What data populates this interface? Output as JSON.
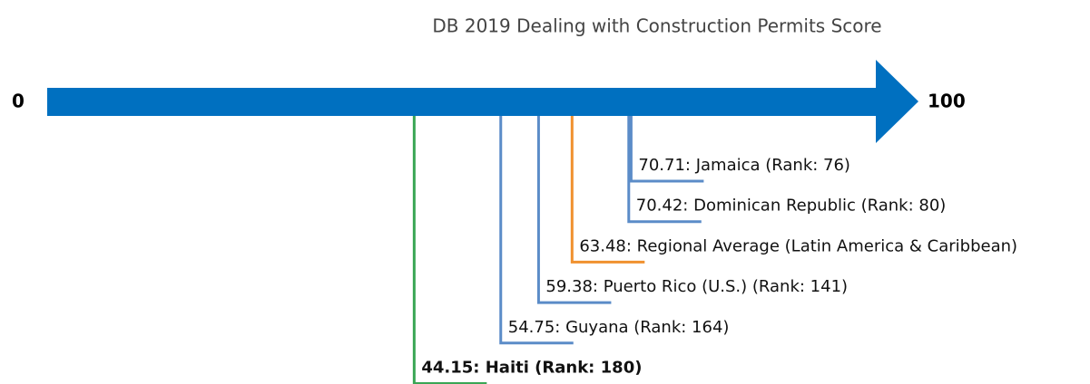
{
  "chart_data": {
    "type": "number-line",
    "title": "DB 2019 Dealing with Construction Permits Score",
    "xlim": [
      0,
      100
    ],
    "xticks": [
      0,
      100
    ],
    "axis_color": "#0070c0",
    "values": [
      70.71,
      70.42,
      63.48,
      59.38,
      54.75,
      44.15
    ],
    "value_labels": [
      "70.71: Jamaica (Rank: 76)",
      "70.42: Dominican Republic (Rank: 80)",
      "63.48: Regional Average (Latin America & Caribbean)",
      "59.38: Puerto Rico (U.S.) (Rank: 141)",
      "54.75: Guyana (Rank: 164)",
      "44.15: Haiti (Rank: 180)"
    ],
    "colors": [
      "#5b8cc8",
      "#5b8cc8",
      "#f0912f",
      "#5b8cc8",
      "#5b8cc8",
      "#3aa655"
    ],
    "highlight": 5
  }
}
